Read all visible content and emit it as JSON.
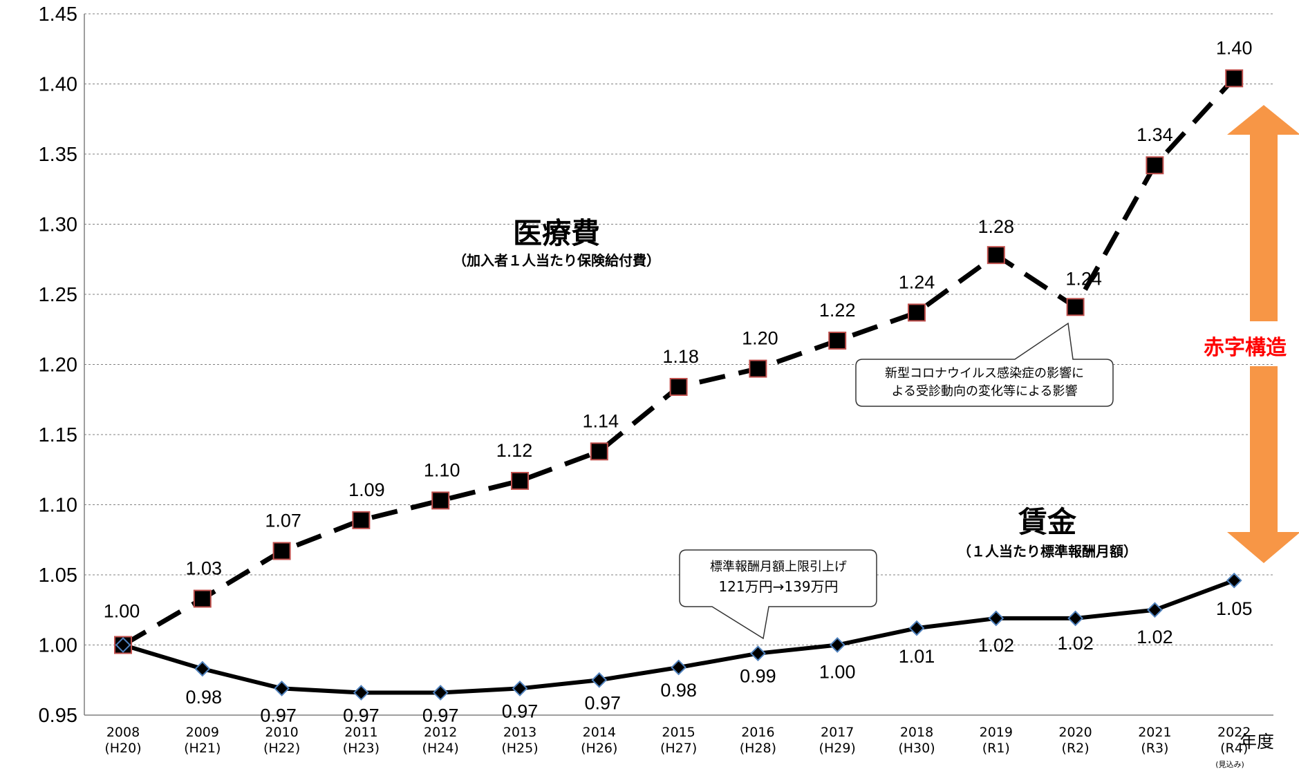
{
  "chart_data": {
    "type": "line",
    "categories": [
      "2008",
      "2009",
      "2010",
      "2011",
      "2012",
      "2013",
      "2014",
      "2015",
      "2016",
      "2017",
      "2018",
      "2019",
      "2020",
      "2021",
      "2022"
    ],
    "category_sub": [
      "(H20)",
      "(H21)",
      "(H22)",
      "(H23)",
      "(H24)",
      "(H25)",
      "(H26)",
      "(H27)",
      "(H28)",
      "(H29)",
      "(H30)",
      "(R1)",
      "(R2)",
      "(R3)",
      "(R4)"
    ],
    "category_note": {
      "index": 14,
      "text": "(見込み)"
    },
    "x_unit": "年度",
    "ylim": [
      0.95,
      1.45
    ],
    "yticks": [
      "0.95",
      "1.00",
      "1.05",
      "1.10",
      "1.15",
      "1.20",
      "1.25",
      "1.30",
      "1.35",
      "1.40",
      "1.45"
    ],
    "grid": true,
    "series": [
      {
        "name": "医療費",
        "subtitle": "（加入者１人当たり保険給付費）",
        "values": [
          1.0,
          1.033,
          1.067,
          1.089,
          1.103,
          1.117,
          1.138,
          1.184,
          1.197,
          1.217,
          1.237,
          1.278,
          1.241,
          1.342,
          1.404
        ],
        "labels": [
          "1.00",
          "1.03",
          "1.07",
          "1.09",
          "1.10",
          "1.12",
          "1.14",
          "1.18",
          "1.20",
          "1.22",
          "1.24",
          "1.28",
          "1.24",
          "1.34",
          "1.40"
        ],
        "style": "dashed",
        "marker": "square",
        "marker_fill": "#000000",
        "marker_edge": "#c0504d"
      },
      {
        "name": "賃金",
        "subtitle": "（１人当たり標準報酬月額）",
        "values": [
          1.0,
          0.983,
          0.969,
          0.966,
          0.966,
          0.969,
          0.975,
          0.984,
          0.994,
          1.0,
          1.012,
          1.019,
          1.019,
          1.025,
          1.046
        ],
        "labels": [
          "",
          "0.98",
          "0.97",
          "0.97",
          "0.97",
          "0.97",
          "0.97",
          "0.98",
          "0.99",
          "1.00",
          "1.01",
          "1.02",
          "1.02",
          "1.02",
          "1.05"
        ],
        "style": "solid",
        "marker": "diamond",
        "marker_fill": "#000000",
        "marker_edge": "#4f81bd"
      }
    ],
    "annotations": [
      {
        "lines": [
          "新型コロナウイルス感染症の影響に",
          "よる受診動向の変化等による影響"
        ],
        "target_series": 0,
        "target_index": 12
      },
      {
        "lines": [
          "標準報酬月額上限引上げ",
          "121万円→139万円"
        ],
        "target_series": 1,
        "target_index": 8
      }
    ],
    "gap_label": "赤字構造",
    "colors": {
      "gap_arrow": "#f79646",
      "gap_text": "#ff0000"
    }
  }
}
